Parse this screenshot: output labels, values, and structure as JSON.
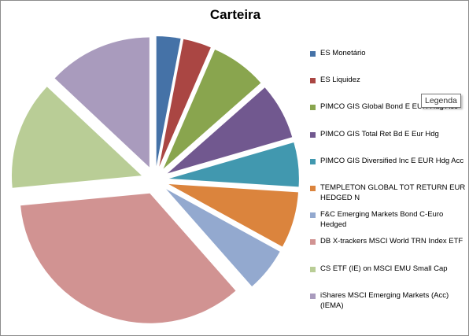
{
  "chart_data": {
    "type": "pie",
    "title": "Carteira",
    "exploded": true,
    "legend_position": "right",
    "series": [
      {
        "name": "ES Monetário",
        "value": 3.0,
        "color": "#4572A7"
      },
      {
        "name": "ES Liquidez",
        "value": 3.5,
        "color": "#AA4643"
      },
      {
        "name": "PIMCO GIS Global Bond E EUR Hdg Acc",
        "value": 7.0,
        "color": "#89A54E"
      },
      {
        "name": "PIMCO GIS Total Ret Bd E Eur Hdg",
        "value": 7.0,
        "color": "#71588F"
      },
      {
        "name": "PIMCO GIS Diversified Inc E EUR Hdg Acc",
        "value": 5.5,
        "color": "#4198AF"
      },
      {
        "name": "TEMPLETON GLOBAL TOT RETURN EUR HEDGED N",
        "value": 7.0,
        "color": "#DB843D"
      },
      {
        "name": "F&C Emerging Markets Bond C-Euro Hedged",
        "value": 5.5,
        "color": "#93A9CF"
      },
      {
        "name": "DB X-trackers MSCI World TRN Index ETF",
        "value": 35.0,
        "color": "#D19392"
      },
      {
        "name": "CS ETF (IE) on MSCI EMU Small Cap",
        "value": 13.5,
        "color": "#B9CD96"
      },
      {
        "name": "iShares MSCI Emerging Markets (Acc) (IEMA)",
        "value": 13.0,
        "color": "#A99BBD"
      }
    ]
  },
  "tooltip": {
    "text": "Legenda"
  }
}
